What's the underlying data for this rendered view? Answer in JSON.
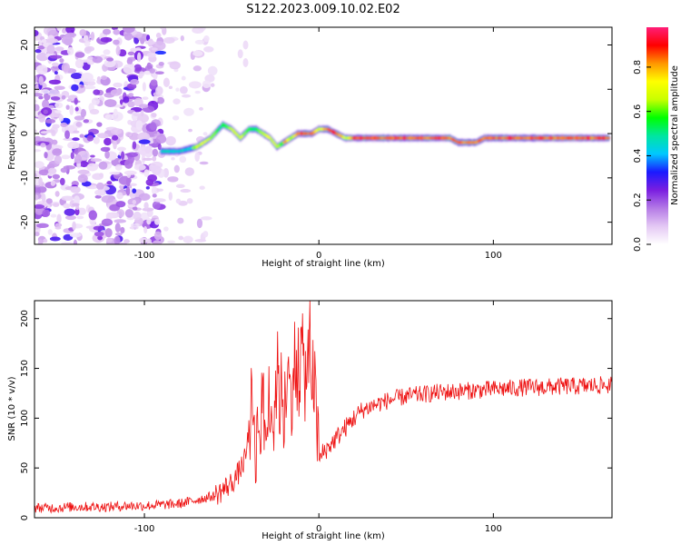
{
  "title": "S122.2023.009.10.02.E02",
  "chart_data": [
    {
      "type": "heatmap",
      "xlabel": "Height of straight line (km)",
      "ylabel": "Frequency (Hz)",
      "xlim": [
        -163,
        168
      ],
      "ylim": [
        -25,
        24
      ],
      "x_ticks": [
        -100,
        0,
        100
      ],
      "y_ticks": [
        -20,
        -10,
        0,
        10,
        20
      ],
      "colorbar": {
        "label": "Normalized spectral amplitude",
        "range": [
          0,
          0.98
        ],
        "ticks": [
          "0.0",
          "0.2",
          "0.4",
          "0.6",
          "0.8"
        ],
        "colormap": [
          "#ffffff",
          "#e4c8f4",
          "#b47ae6",
          "#7a1ee0",
          "#1a1aff",
          "#00c8ff",
          "#00e6a0",
          "#00ff00",
          "#c8ff00",
          "#ffff00",
          "#ff9600",
          "#ff0000",
          "#ff1e78"
        ]
      },
      "ridge_line": {
        "x": [
          -90,
          -80,
          -70,
          -62,
          -55,
          -50,
          -45,
          -40,
          -36,
          -32,
          -28,
          -24,
          -20,
          -16,
          -12,
          -8,
          -4,
          0,
          5,
          10,
          15,
          20,
          40,
          60,
          75,
          80,
          85,
          90,
          95,
          100,
          120,
          140,
          160,
          166
        ],
        "y": [
          -4,
          -4,
          -3,
          -1,
          2,
          1,
          -1,
          1,
          1,
          0,
          -1,
          -3,
          -2,
          -1,
          0,
          0,
          0,
          1,
          1,
          0,
          -1,
          -1,
          -1,
          -1,
          -1,
          -2,
          -2,
          -2,
          -1,
          -1,
          -1,
          -1,
          -1,
          -1
        ]
      },
      "noise_region_x": [
        -163,
        -90
      ]
    },
    {
      "type": "line",
      "xlabel": "Height of straight line (km)",
      "ylabel": "SNR (10 * v/v)",
      "xlim": [
        -163,
        168
      ],
      "ylim": [
        0,
        218
      ],
      "x_ticks": [
        -100,
        0,
        100
      ],
      "y_ticks": [
        0,
        50,
        100,
        150,
        200
      ],
      "series": [
        {
          "color": "#ee1111",
          "x": [
            -163,
            -150,
            -140,
            -130,
            -120,
            -110,
            -100,
            -90,
            -80,
            -70,
            -60,
            -55,
            -50,
            -46,
            -42,
            -40,
            -38,
            -36,
            -34,
            -32,
            -30,
            -28,
            -26,
            -24,
            -22,
            -20,
            -18,
            -16,
            -14,
            -12,
            -10,
            -8,
            -6,
            -4,
            -2,
            0,
            2,
            5,
            10,
            15,
            20,
            25,
            30,
            40,
            50,
            60,
            70,
            80,
            90,
            100,
            110,
            120,
            130,
            140,
            150,
            160,
            168
          ],
          "y": [
            10,
            10,
            11,
            11,
            11,
            12,
            12,
            13,
            14,
            18,
            22,
            28,
            35,
            45,
            60,
            90,
            120,
            70,
            100,
            110,
            80,
            130,
            90,
            150,
            110,
            100,
            140,
            120,
            160,
            130,
            170,
            140,
            160,
            150,
            120,
            55,
            65,
            70,
            80,
            90,
            100,
            108,
            112,
            118,
            122,
            124,
            126,
            127,
            128,
            129,
            130,
            131,
            131,
            132,
            132,
            133,
            133
          ]
        }
      ]
    }
  ]
}
